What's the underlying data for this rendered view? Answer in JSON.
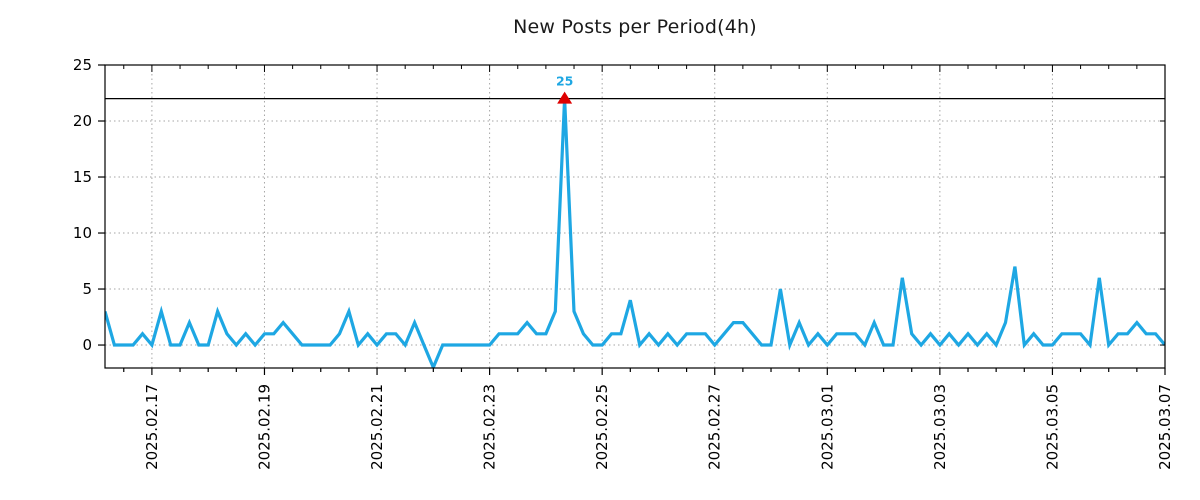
{
  "title": "New Posts per Period(4h)",
  "chart_data": {
    "type": "line",
    "title": "New Posts per Period(4h)",
    "xlabel": "",
    "ylabel": "",
    "x_start": "2025.02.16 04:00",
    "period_hours": 4,
    "x_tick_labels": [
      "2025.02.17",
      "2025.02.19",
      "2025.02.21",
      "2025.02.23",
      "2025.02.25",
      "2025.02.27",
      "2025.03.01",
      "2025.03.03",
      "2025.03.05",
      "2025.03.07"
    ],
    "x_tick_indices": [
      5,
      17,
      29,
      41,
      53,
      65,
      77,
      89,
      101,
      113
    ],
    "minor_tick_start_index": 2,
    "minor_tick_step": 3,
    "y_ticks": [
      0,
      5,
      10,
      15,
      20,
      25
    ],
    "ylim": [
      -2.05,
      25
    ],
    "grid": true,
    "threshold_value": 22,
    "clip_max": 22,
    "max_annotation": {
      "label": "25",
      "value": 25,
      "index": 49,
      "marker": "red-triangle-up"
    },
    "values": [
      3,
      0,
      0,
      0,
      1,
      0,
      3,
      0,
      0,
      2,
      0,
      0,
      3,
      1,
      0,
      1,
      0,
      1,
      1,
      2,
      1,
      0,
      0,
      0,
      0,
      1,
      3,
      0,
      1,
      0,
      1,
      1,
      0,
      2,
      0,
      -2,
      0,
      0,
      0,
      0,
      0,
      0,
      1,
      1,
      1,
      2,
      1,
      1,
      3,
      25,
      3,
      1,
      0,
      0,
      1,
      1,
      4,
      0,
      1,
      0,
      1,
      0,
      1,
      1,
      1,
      0,
      1,
      2,
      2,
      1,
      0,
      0,
      5,
      0,
      2,
      0,
      1,
      0,
      1,
      1,
      1,
      0,
      2,
      0,
      0,
      6,
      1,
      0,
      1,
      0,
      1,
      0,
      1,
      0,
      1,
      0,
      2,
      7,
      0,
      1,
      0,
      0,
      1,
      1,
      1,
      0,
      6,
      0,
      1,
      1,
      2,
      1,
      1,
      0
    ],
    "colors": {
      "line": "#1EA7E3",
      "marker": "#DE0000",
      "annotation_text": "#1EA7E3",
      "grid": "#A6A6A6",
      "axis": "#000000",
      "threshold": "#000000",
      "title_text": "#1a1a1a",
      "tick_text": "#000000"
    },
    "legend": null
  }
}
